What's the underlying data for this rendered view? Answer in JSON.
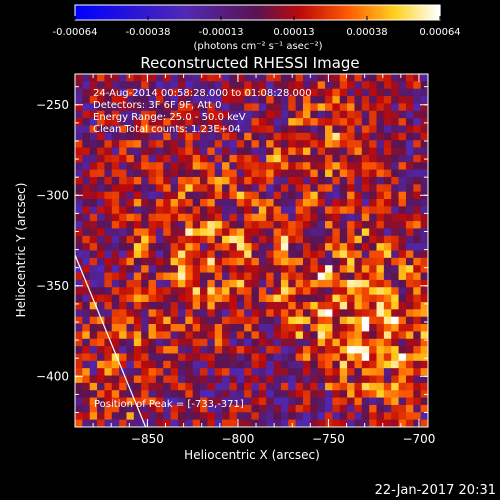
{
  "colorbar": {
    "tick_labels": [
      "-0.00064",
      "-0.00038",
      "-0.00013",
      "0.00013",
      "0.00038",
      "0.00064"
    ],
    "units": "(photons cm⁻² s⁻¹ asec⁻²)",
    "range": [
      -0.00064,
      0.00064
    ]
  },
  "chart_data": {
    "type": "heatmap",
    "title": "Reconstructed RHESSI Image",
    "xlabel": "Heliocentric X (arcsec)",
    "ylabel": "Heliocentric Y (arcsec)",
    "xlim": [
      -890,
      -695
    ],
    "ylim": [
      -428,
      -233
    ],
    "x_ticks": [
      -850,
      -800,
      -750,
      -700
    ],
    "y_ticks": [
      -250,
      -300,
      -350,
      -400
    ],
    "x_tick_labels": [
      "−850",
      "−800",
      "−750",
      "−700"
    ],
    "y_tick_labels": [
      "−250",
      "−300",
      "−350",
      "−400"
    ],
    "peak": {
      "x": -733,
      "y": -371
    },
    "sources": [
      {
        "x": -815,
        "y": -337,
        "amp": 0.0006,
        "sigma": 18
      },
      {
        "x": -732,
        "y": -370,
        "amp": 0.00064,
        "sigma": 16
      },
      {
        "x": -752,
        "y": -345,
        "amp": 0.00048,
        "sigma": 14
      },
      {
        "x": -712,
        "y": -392,
        "amp": 0.0005,
        "sigma": 13
      },
      {
        "x": -870,
        "y": -392,
        "amp": 0.00052,
        "sigma": 14
      },
      {
        "x": -842,
        "y": -290,
        "amp": 0.00036,
        "sigma": 14
      },
      {
        "x": -748,
        "y": -268,
        "amp": 0.0004,
        "sigma": 15
      },
      {
        "x": -780,
        "y": -285,
        "amp": 0.00026,
        "sigma": 12
      },
      {
        "x": -705,
        "y": -318,
        "amp": 0.0003,
        "sigma": 12
      }
    ],
    "limb_line": {
      "x": [
        -890,
        -851
      ],
      "y": [
        -333,
        -428
      ]
    },
    "annotations": [
      "24-Aug-2014 00:58:28.000 to 01:08:28.000",
      "Detectors: 3F 6F 9F, Att 0",
      "Energy Range: 25.0 - 50.0 keV",
      "Clean     Total counts: 1.23E+04"
    ],
    "peak_label": "Position of Peak = [-733,-371]"
  },
  "timestamp": "22-Jan-2017 20:31"
}
